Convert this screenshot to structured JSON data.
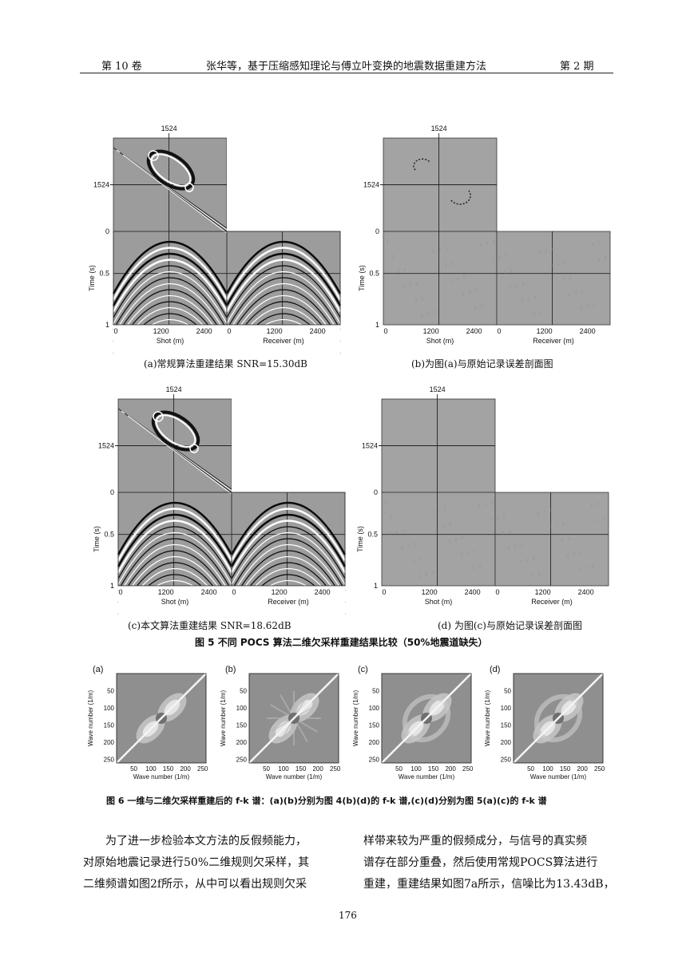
{
  "header": {
    "volume": "第 10 卷",
    "title": "张华等，基于压缩感知理论与傅立叶变换的地震数据重建方法",
    "issue": "第 2 期"
  },
  "fig5": {
    "panels": [
      {
        "id": "a",
        "top_label": "1524",
        "time_label": "1524",
        "shot_axis": "Shot (m)",
        "receiver_axis": "Receiver (m)",
        "caption": "(a)常规算法重建结果 SNR=15.30dB",
        "mode": "recon"
      },
      {
        "id": "b",
        "top_label": "1524",
        "time_label": "1524",
        "shot_axis": "Shot (m)",
        "receiver_axis": "Receiver (m)",
        "caption": "(b)为图(a)与原始记录误差剖面图",
        "mode": "error_a"
      },
      {
        "id": "c",
        "top_label": "1524",
        "time_label": "1524",
        "shot_axis": "Shot (m)",
        "receiver_axis": "Receiver (m)",
        "caption": "(c)本文算法重建结果 SNR=18.62dB",
        "mode": "recon"
      },
      {
        "id": "d",
        "top_label": "1524",
        "time_label": "1524",
        "shot_axis": "Shot (m)",
        "receiver_axis": "Receiver (m)",
        "caption": "(d)  为图(c)与原始记录误差剖面图",
        "mode": "error_c"
      }
    ],
    "y_axis_label": "Time (s)",
    "y_ticks": [
      "0",
      "0.5",
      "1"
    ],
    "x_ticks": [
      "0",
      "1200",
      "2400"
    ],
    "caption": "图 5 不同 POCS 算法二维欠采样重建结果比较（50%地震道缺失）"
  },
  "fig6": {
    "panels": [
      {
        "tag": "(a)"
      },
      {
        "tag": "(b)"
      },
      {
        "tag": "(c)"
      },
      {
        "tag": "(d)"
      }
    ],
    "y_axis_label": "Wave number (1/m)",
    "x_axis_label": "Wave number (1/m)",
    "y_ticks": [
      "50",
      "100",
      "150",
      "200",
      "250"
    ],
    "x_ticks": [
      "50",
      "100",
      "150",
      "200",
      "250"
    ],
    "caption": "图 6 一维与二维欠采样重建后的 f-k 谱：(a)(b)分别为图 4(b)(d)的 f-k 谱,(c)(d)分别为图 5(a)(c)的 f-k 谱"
  },
  "body": {
    "left": [
      "为了进一步检验本文方法的反假频能力，",
      "对原始地震记录进行50%二维规则欠采样，其",
      "二维频谱如图2f所示，从中可以看出规则欠采"
    ],
    "right": [
      "样带来较为严重的假频成分，与信号的真实频",
      "谱存在部分重叠，然后使用常规POCS算法进行",
      "重建，重建结果如图7a所示，信噪比为13.43dB，"
    ]
  },
  "page_number": "176"
}
